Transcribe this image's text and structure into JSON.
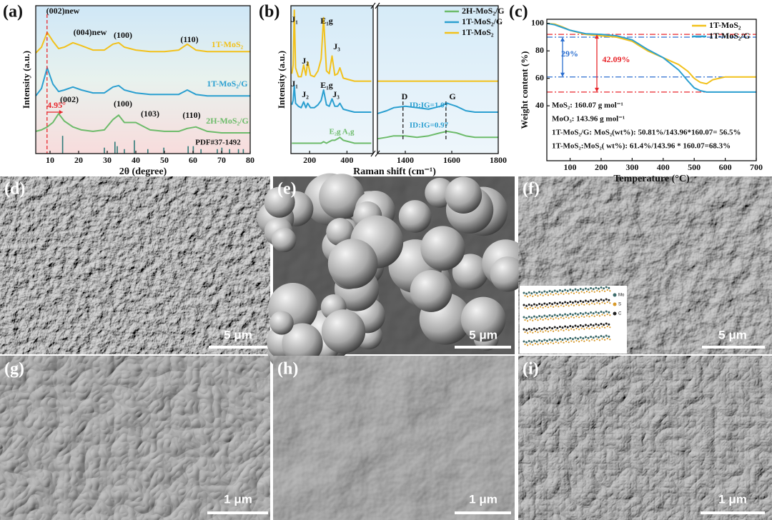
{
  "chart_data": [
    {
      "type": "line",
      "panel": "(a)",
      "x_label": "2θ (degree)",
      "y_label": "Intensity (a.u.)",
      "xlim": [
        5,
        80
      ],
      "xticks": [
        10,
        20,
        30,
        40,
        50,
        60,
        70,
        80
      ],
      "ylim": [
        0,
        10
      ],
      "legend": "inline",
      "x": [
        5,
        7,
        9,
        11,
        13,
        15,
        18,
        21,
        25,
        29,
        32,
        34,
        36,
        40,
        45,
        50,
        55,
        58,
        61,
        65,
        70,
        75,
        80
      ],
      "series": [
        {
          "name": "1T-MoS₂",
          "color": "#f2c11b",
          "values": [
            6.8,
            7.2,
            8.2,
            7.6,
            7.1,
            7.2,
            7.5,
            7.3,
            7.0,
            7.0,
            7.4,
            7.5,
            7.2,
            7.0,
            6.9,
            6.9,
            7.0,
            7.4,
            7.0,
            6.9,
            6.9,
            6.9,
            6.9
          ]
        },
        {
          "name": "1T-MoS₂/G",
          "color": "#2b9fd0",
          "values": [
            3.9,
            4.4,
            5.8,
            4.7,
            4.2,
            4.3,
            4.5,
            4.3,
            4.1,
            4.1,
            4.5,
            4.6,
            4.3,
            4.1,
            4.0,
            4.0,
            4.0,
            4.3,
            4.0,
            3.9,
            3.9,
            3.9,
            3.9
          ]
        },
        {
          "name": "2H-MoS₂/G",
          "color": "#6dbb6a",
          "values": [
            1.5,
            1.6,
            1.8,
            2.1,
            2.7,
            2.2,
            1.8,
            1.6,
            1.5,
            1.6,
            2.3,
            2.6,
            2.1,
            2.1,
            1.6,
            1.5,
            1.5,
            1.7,
            1.8,
            1.5,
            1.4,
            1.4,
            1.4
          ]
        }
      ],
      "reference": {
        "name": "PDF#37-1492",
        "color": "#2f7a78",
        "x": [
          14.4,
          29,
          32.7,
          33.5,
          36,
          39.5,
          44.2,
          49.8,
          58.3,
          60.1,
          62.8,
          68.5,
          70.1,
          72.8,
          75.9,
          77.6
        ],
        "values": [
          1.2,
          0.4,
          0.8,
          0.5,
          0.3,
          0.9,
          0.3,
          0.4,
          0.5,
          0.5,
          0.3,
          0.3,
          0.4,
          0.3,
          0.3,
          0.3
        ]
      },
      "ref_lines": {
        "color": "#e8262b",
        "values": [
          8.95
        ]
      },
      "annotations": [
        "(002)new",
        "(004)new",
        "(100)",
        "(110)",
        "(002)",
        "(100)",
        "(103)",
        "(110)",
        "4.95°"
      ]
    },
    {
      "type": "line",
      "panel": "(b)",
      "x_label": "Raman shift (cm⁻¹)",
      "y_label": "Intensity (a.u.)",
      "xlim": [
        [
          100,
          540
        ],
        [
          1280,
          1800
        ]
      ],
      "xticks": [
        200,
        400,
        1400,
        1600,
        1800
      ],
      "ylim": [
        0,
        10
      ],
      "legend": "upper right",
      "x": [
        105,
        112,
        118,
        125,
        140,
        155,
        168,
        180,
        190,
        205,
        225,
        245,
        262,
        275,
        290,
        305,
        320,
        335,
        350,
        362,
        380,
        410,
        440,
        470,
        500,
        530,
        1280,
        1320,
        1350,
        1400,
        1450,
        1500,
        1550,
        1580,
        1620,
        1660,
        1700,
        1750,
        1800
      ],
      "series": [
        {
          "name": "2H-MoS₂/G",
          "color": "#6dbb6a",
          "values": [
            0.7,
            0.7,
            0.7,
            0.7,
            0.7,
            0.7,
            0.7,
            0.7,
            0.7,
            0.7,
            0.7,
            0.7,
            0.7,
            0.8,
            0.7,
            0.8,
            0.9,
            0.9,
            1.0,
            1.1,
            0.9,
            0.8,
            0.7,
            0.7,
            0.7,
            0.7,
            1.0,
            1.1,
            1.2,
            1.2,
            1.1,
            1.2,
            1.4,
            1.5,
            1.4,
            1.2,
            1.1,
            1.1,
            1.1
          ]
        },
        {
          "name": "1T-MoS₂/G",
          "color": "#2b9fd0",
          "values": [
            3.3,
            3.6,
            4.6,
            3.4,
            3.2,
            3.1,
            3.5,
            3.1,
            3.4,
            3.1,
            3.1,
            3.3,
            3.6,
            4.3,
            3.3,
            3.2,
            3.7,
            3.2,
            3.2,
            3.4,
            3.0,
            2.9,
            2.8,
            2.8,
            2.8,
            2.8,
            2.7,
            2.9,
            3.1,
            3.2,
            3.1,
            3.0,
            3.2,
            3.4,
            3.2,
            2.9,
            2.8,
            2.8,
            2.8
          ]
        },
        {
          "name": "1T-MoS₂",
          "color": "#f2c11b",
          "values": [
            5.4,
            6.0,
            9.7,
            5.8,
            5.2,
            5.2,
            6.0,
            5.3,
            6.2,
            5.3,
            5.2,
            5.6,
            6.4,
            9.2,
            5.6,
            5.4,
            6.6,
            5.3,
            5.4,
            5.8,
            5.1,
            5.0,
            4.9,
            4.9,
            4.9,
            4.9,
            4.9,
            4.9,
            4.9,
            4.9,
            4.9,
            4.9,
            4.9,
            4.9,
            4.9,
            4.9,
            4.9,
            4.9,
            4.9
          ]
        }
      ],
      "ref_lines": {
        "color": "#222222",
        "values": [
          1390,
          1575
        ]
      },
      "annotations": [
        "J₁",
        "J₂",
        "E₁g",
        "J₃",
        "J₁",
        "J₂",
        "E₁g",
        "J₃",
        "D",
        "G",
        "ID:IG=1.07",
        "ID:IG=0.97",
        "E₂g A₁g"
      ]
    },
    {
      "type": "line",
      "panel": "(c)",
      "x_label": "Temperature (°C)",
      "y_label": "Weight content (%)",
      "xlim": [
        25,
        700
      ],
      "xticks": [
        100,
        200,
        300,
        400,
        500,
        600,
        700
      ],
      "ylim": [
        0,
        103
      ],
      "yticks": [
        40,
        60,
        80,
        100
      ],
      "legend": "upper right",
      "x": [
        25,
        50,
        75,
        100,
        150,
        200,
        250,
        300,
        350,
        400,
        450,
        480,
        500,
        520,
        540,
        560,
        600,
        650,
        700
      ],
      "series": [
        {
          "name": "1T-MoS₂",
          "color": "#f2c11b",
          "values": [
            100,
            99.5,
            97.5,
            95,
            92,
            91,
            90,
            87,
            80,
            75,
            70,
            65,
            60,
            57,
            56,
            59,
            61,
            61,
            61
          ]
        },
        {
          "name": "1T-MoS₂/G",
          "color": "#2b9fd0",
          "values": [
            100,
            99,
            97,
            95,
            92.5,
            92,
            91,
            88,
            81,
            75,
            66,
            58,
            53,
            51,
            50,
            50,
            50,
            50,
            50
          ]
        }
      ],
      "hlines": [
        {
          "value": 90,
          "color": "#2b6fd0"
        },
        {
          "value": 61,
          "color": "#2b6fd0"
        },
        {
          "value": 92,
          "color": "#e8262b"
        },
        {
          "value": 50,
          "color": "#e8262b"
        }
      ],
      "annotations": [
        "29%",
        "42.09%"
      ],
      "notes": [
        "MoS₂: 160.07 g mol⁻¹",
        "MoO₃: 143.96 g mol⁻¹",
        "1T-MoS₂/G: MoS₂(wt%): 50.81%/143.96*160.07= 56.5%",
        "1T-MoS₂:MoS₂( wt%): 61.4%/143.96 * 160.07=68.3%"
      ]
    }
  ],
  "images": [
    {
      "label": "(d)",
      "scale_bar": "5 μm"
    },
    {
      "label": "(e)",
      "scale_bar": "5 μm"
    },
    {
      "label": "(f)",
      "scale_bar": "5 μm"
    },
    {
      "label": "(g)",
      "scale_bar": "1 μm"
    },
    {
      "label": "(h)",
      "scale_bar": "1 μm"
    },
    {
      "label": "(i)",
      "scale_bar": "1 μm"
    }
  ],
  "inset": {
    "legend": [
      "Mo",
      "S",
      "C"
    ]
  }
}
